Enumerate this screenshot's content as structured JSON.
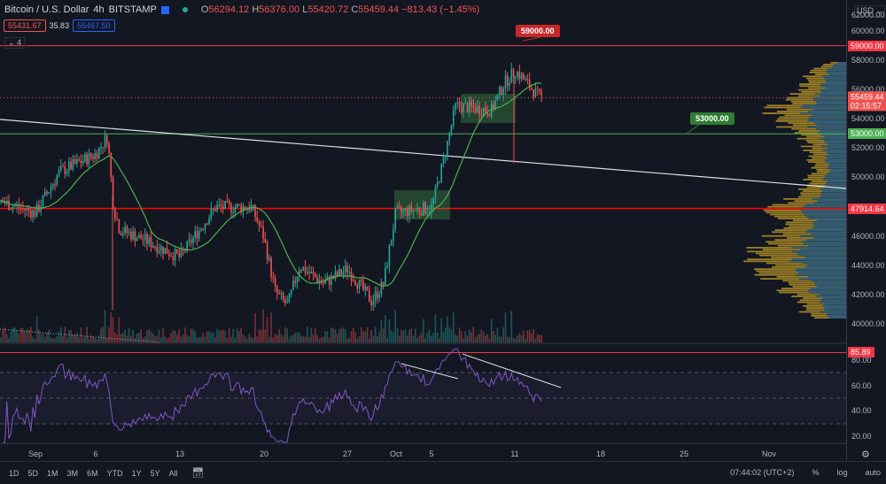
{
  "header": {
    "symbol": "Bitcoin / U.S. Dollar",
    "interval": "4h",
    "exchange": "BITSTAMP",
    "open_label": "O",
    "open": "56294.12",
    "high_label": "H",
    "high": "56376.00",
    "low_label": "L",
    "low": "55420.72",
    "close_label": "C",
    "close": "55459.44",
    "change": "−813.43 (−1.45%)",
    "bid": "55431.67",
    "spread": "35.83",
    "ask": "55467.50",
    "indicators_toggle": "⌄ 4"
  },
  "price_axis": {
    "currency": "USD ⌄",
    "ticks": [
      "62000.00",
      "60000.00",
      "58000.00",
      "56000.00",
      "54000.00",
      "52000.00",
      "50000.00",
      "46000.00",
      "44000.00",
      "42000.00",
      "40000.00"
    ],
    "tag_59000": "59000.00",
    "tag_price": "55459.44",
    "tag_countdown": "02:15:57",
    "tag_53000": "53000.00",
    "tag_47914": "47914.64"
  },
  "rsi_axis": {
    "ticks": [
      "80.00",
      "60.00",
      "40.00",
      "20.00"
    ],
    "tag": "85.89"
  },
  "annotations": {
    "label_59000": "59000.00",
    "label_53000": "53000.00"
  },
  "time_axis": {
    "ticks": [
      "Sep",
      "6",
      "13",
      "20",
      "27",
      "Oct",
      "5",
      "11",
      "18",
      "25",
      "Nov"
    ]
  },
  "bottom_bar": {
    "ranges": [
      "1D",
      "5D",
      "1M",
      "3M",
      "6M",
      "YTD",
      "1Y",
      "5Y",
      "All"
    ],
    "time": "07:44:02 (UTC+2)",
    "percent": "%",
    "log": "log",
    "auto": "auto"
  },
  "colors": {
    "up": "#26a69a",
    "down": "#ef5350",
    "ma": "#4caf50",
    "rsi": "#7e57c2",
    "resistance": "#f23645",
    "support": "#4caf50",
    "profile_up": "#c9a227",
    "profile_down": "#1e5a8c"
  },
  "price_path": [
    [
      "Aug 29",
      48400
    ],
    [
      "Sep 1",
      47600
    ],
    [
      "Sep 3",
      50400
    ],
    [
      "Sep 6",
      51600
    ],
    [
      "Sep 7",
      52800
    ],
    [
      "Sep 7 12h",
      48000
    ],
    [
      "Sep 8",
      46500
    ],
    [
      "Sep 10",
      45800
    ],
    [
      "Sep 13",
      44600
    ],
    [
      "Sep 16",
      48000
    ],
    [
      "Sep 19",
      48000
    ],
    [
      "Sep 20",
      46000
    ],
    [
      "Sep 21",
      42200
    ],
    [
      "Sep 22",
      41300
    ],
    [
      "Sep 23",
      44000
    ],
    [
      "Sep 25",
      42800
    ],
    [
      "Sep 27",
      43800
    ],
    [
      "Sep 29",
      41600
    ],
    [
      "Sep 30",
      42800
    ],
    [
      "Oct 1",
      47600
    ],
    [
      "Oct 4",
      48000
    ],
    [
      "Oct 5",
      51200
    ],
    [
      "Oct 6",
      54900
    ],
    [
      "Oct 9",
      54600
    ],
    [
      "Oct 10",
      56400
    ],
    [
      "Oct 11",
      57300
    ],
    [
      "Oct 13",
      55459
    ]
  ]
}
